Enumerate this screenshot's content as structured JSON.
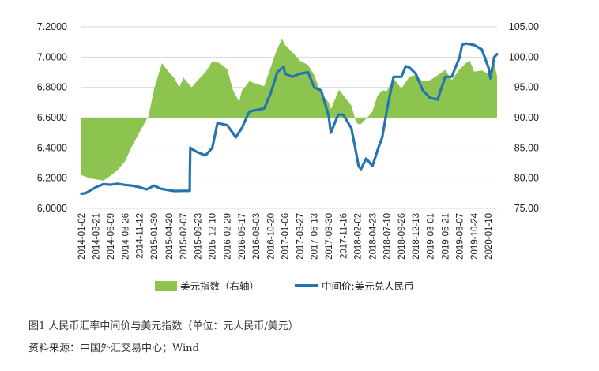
{
  "caption": {
    "figure_title": "图1   人民币汇率中间价与美元指数（单位：元人民币/美元）",
    "source": "资料来源：中国外汇交易中心；Wind"
  },
  "colors": {
    "area": "#8dc450",
    "line": "#2474b0",
    "grid": "#d9d9d9",
    "text": "#222222"
  },
  "chart_data": {
    "type": "line",
    "grid": "horizontal",
    "legend_position": "bottom",
    "left_axis": {
      "min": 6.0,
      "max": 7.2,
      "ticks": [
        6.0,
        6.2,
        6.4,
        6.6,
        6.8,
        7.0,
        7.2
      ],
      "tick_labels": [
        "6.0000",
        "6.2000",
        "6.4000",
        "6.6000",
        "6.8000",
        "7.0000",
        "7.2000"
      ]
    },
    "right_axis": {
      "min": 75,
      "max": 105,
      "ticks": [
        75,
        80,
        85,
        90,
        95,
        100,
        105
      ],
      "tick_labels": [
        "75.00",
        "80.00",
        "85.00",
        "90.00",
        "95.00",
        "100.00",
        "105.00"
      ],
      "area_baseline": 90
    },
    "x_ticks": [
      "2014-01-02",
      "2014-03-21",
      "2014-06-09",
      "2014-08-26",
      "2014-11-12",
      "2015-01-30",
      "2015-04-20",
      "2015-07-07",
      "2015-09-23",
      "2015-12-10",
      "2016-02-29",
      "2016-05-17",
      "2016-08-03",
      "2016-10-20",
      "2017-01-06",
      "2017-03-27",
      "2017-06-13",
      "2017-08-30",
      "2017-11-16",
      "2018-02-02",
      "2018-04-23",
      "2018-07-10",
      "2018-09-26",
      "2018-12-13",
      "2019-03-01",
      "2019-05-21",
      "2019-08-07",
      "2019-10-24",
      "2020-01-10"
    ],
    "series": [
      {
        "name": "美元指数（右轴）",
        "kind": "area",
        "axis": "right",
        "points": [
          [
            "2014-01-02",
            80.5
          ],
          [
            "2014-02-15",
            80.0
          ],
          [
            "2014-03-21",
            79.8
          ],
          [
            "2014-05-01",
            79.6
          ],
          [
            "2014-06-09",
            80.4
          ],
          [
            "2014-07-15",
            81.3
          ],
          [
            "2014-08-26",
            82.8
          ],
          [
            "2014-10-01",
            85.2
          ],
          [
            "2014-11-12",
            87.6
          ],
          [
            "2014-12-31",
            90.3
          ],
          [
            "2015-01-30",
            94.8
          ],
          [
            "2015-03-13",
            99.0
          ],
          [
            "2015-04-20",
            97.5
          ],
          [
            "2015-05-20",
            96.5
          ],
          [
            "2015-06-15",
            95.0
          ],
          [
            "2015-07-07",
            96.6
          ],
          [
            "2015-08-20",
            95.0
          ],
          [
            "2015-09-23",
            96.2
          ],
          [
            "2015-11-03",
            97.5
          ],
          [
            "2015-12-10",
            99.3
          ],
          [
            "2016-01-20",
            99.0
          ],
          [
            "2016-02-29",
            98.0
          ],
          [
            "2016-03-30",
            94.6
          ],
          [
            "2016-05-03",
            92.6
          ],
          [
            "2016-05-17",
            94.4
          ],
          [
            "2016-06-27",
            96.0
          ],
          [
            "2016-08-03",
            95.6
          ],
          [
            "2016-09-15",
            95.2
          ],
          [
            "2016-10-20",
            98.3
          ],
          [
            "2016-11-20",
            101.0
          ],
          [
            "2016-12-20",
            103.0
          ],
          [
            "2017-01-06",
            102.0
          ],
          [
            "2017-02-15",
            100.8
          ],
          [
            "2017-03-27",
            99.4
          ],
          [
            "2017-05-10",
            98.7
          ],
          [
            "2017-06-13",
            97.0
          ],
          [
            "2017-07-20",
            94.0
          ],
          [
            "2017-08-30",
            92.5
          ],
          [
            "2017-09-10",
            91.4
          ],
          [
            "2017-10-25",
            94.6
          ],
          [
            "2017-11-16",
            93.7
          ],
          [
            "2017-12-30",
            92.0
          ],
          [
            "2018-01-25",
            89.2
          ],
          [
            "2018-02-15",
            88.8
          ],
          [
            "2018-03-20",
            89.8
          ],
          [
            "2018-04-23",
            91.0
          ],
          [
            "2018-05-20",
            93.6
          ],
          [
            "2018-06-15",
            94.5
          ],
          [
            "2018-07-10",
            94.4
          ],
          [
            "2018-08-15",
            96.5
          ],
          [
            "2018-09-26",
            94.8
          ],
          [
            "2018-11-10",
            96.8
          ],
          [
            "2018-12-13",
            97.0
          ],
          [
            "2019-01-20",
            96.0
          ],
          [
            "2019-03-01",
            96.2
          ],
          [
            "2019-04-10",
            97.0
          ],
          [
            "2019-05-21",
            97.9
          ],
          [
            "2019-06-25",
            96.2
          ],
          [
            "2019-08-07",
            98.0
          ],
          [
            "2019-09-10",
            99.0
          ],
          [
            "2019-10-01",
            99.4
          ],
          [
            "2019-10-24",
            97.6
          ],
          [
            "2019-12-05",
            97.8
          ],
          [
            "2020-01-10",
            97.2
          ],
          [
            "2020-02-10",
            99.0
          ],
          [
            "2020-02-25",
            96.8
          ]
        ]
      },
      {
        "name": "中间价:美元兑人民币",
        "kind": "line",
        "axis": "left",
        "points": [
          [
            "2014-01-02",
            6.0969
          ],
          [
            "2014-01-25",
            6.1
          ],
          [
            "2014-03-21",
            6.14
          ],
          [
            "2014-05-01",
            6.16
          ],
          [
            "2014-06-09",
            6.156
          ],
          [
            "2014-07-15",
            6.163
          ],
          [
            "2014-08-26",
            6.155
          ],
          [
            "2014-10-01",
            6.15
          ],
          [
            "2014-11-12",
            6.14
          ],
          [
            "2014-12-20",
            6.125
          ],
          [
            "2015-01-30",
            6.15
          ],
          [
            "2015-03-05",
            6.13
          ],
          [
            "2015-04-20",
            6.12
          ],
          [
            "2015-05-20",
            6.115
          ],
          [
            "2015-07-07",
            6.116
          ],
          [
            "2015-08-10",
            6.116
          ],
          [
            "2015-08-11",
            6.2298
          ],
          [
            "2015-08-13",
            6.401
          ],
          [
            "2015-08-25",
            6.39
          ],
          [
            "2015-09-23",
            6.37
          ],
          [
            "2015-11-03",
            6.35
          ],
          [
            "2015-12-10",
            6.4
          ],
          [
            "2016-01-07",
            6.5646
          ],
          [
            "2016-02-29",
            6.55
          ],
          [
            "2016-04-15",
            6.47
          ],
          [
            "2016-05-17",
            6.53
          ],
          [
            "2016-06-27",
            6.64
          ],
          [
            "2016-08-03",
            6.65
          ],
          [
            "2016-09-15",
            6.66
          ],
          [
            "2016-10-20",
            6.76
          ],
          [
            "2016-11-25",
            6.9
          ],
          [
            "2016-12-30",
            6.937
          ],
          [
            "2017-01-06",
            6.89
          ],
          [
            "2017-02-15",
            6.87
          ],
          [
            "2017-03-27",
            6.89
          ],
          [
            "2017-05-10",
            6.9
          ],
          [
            "2017-06-13",
            6.8
          ],
          [
            "2017-07-20",
            6.78
          ],
          [
            "2017-08-30",
            6.61
          ],
          [
            "2017-09-10",
            6.5
          ],
          [
            "2017-10-20",
            6.62
          ],
          [
            "2017-11-16",
            6.62
          ],
          [
            "2017-12-30",
            6.53
          ],
          [
            "2018-01-20",
            6.4
          ],
          [
            "2018-02-07",
            6.28
          ],
          [
            "2018-02-20",
            6.26
          ],
          [
            "2018-03-20",
            6.33
          ],
          [
            "2018-04-23",
            6.28
          ],
          [
            "2018-05-25",
            6.4
          ],
          [
            "2018-06-15",
            6.47
          ],
          [
            "2018-07-10",
            6.65
          ],
          [
            "2018-08-15",
            6.87
          ],
          [
            "2018-09-26",
            6.87
          ],
          [
            "2018-10-20",
            6.94
          ],
          [
            "2018-11-10",
            6.93
          ],
          [
            "2018-12-13",
            6.89
          ],
          [
            "2019-01-20",
            6.78
          ],
          [
            "2019-03-01",
            6.73
          ],
          [
            "2019-04-10",
            6.72
          ],
          [
            "2019-05-21",
            6.87
          ],
          [
            "2019-06-25",
            6.87
          ],
          [
            "2019-08-07",
            7.0
          ],
          [
            "2019-08-20",
            7.08
          ],
          [
            "2019-09-10",
            7.09
          ],
          [
            "2019-10-24",
            7.08
          ],
          [
            "2019-12-05",
            7.05
          ],
          [
            "2020-01-10",
            6.93
          ],
          [
            "2020-01-20",
            6.86
          ],
          [
            "2020-02-10",
            7.0
          ],
          [
            "2020-02-25",
            7.02
          ]
        ]
      }
    ]
  }
}
